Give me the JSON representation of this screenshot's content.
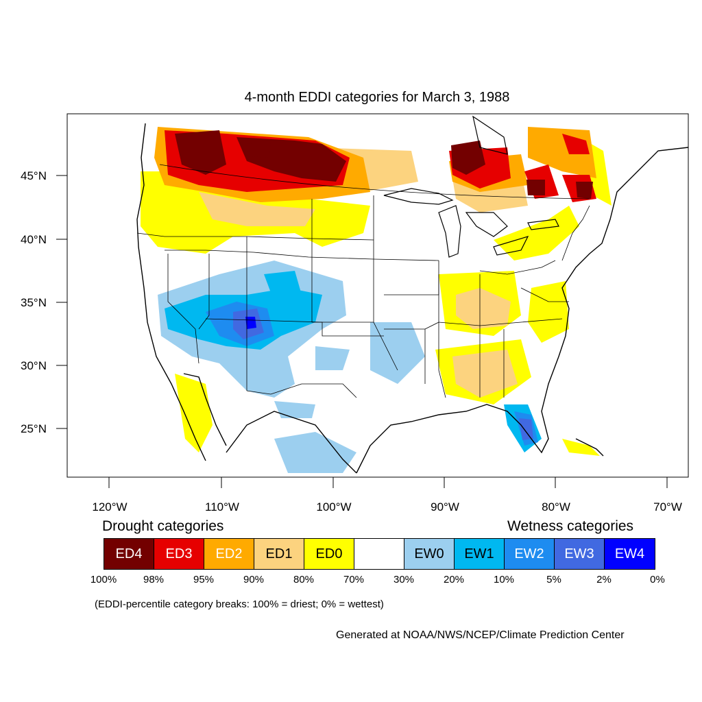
{
  "title": "4-month EDDI categories for March 3, 1988",
  "map": {
    "lat_labels": [
      "45°N",
      "40°N",
      "35°N",
      "30°N",
      "25°N"
    ],
    "lon_labels": [
      "120°W",
      "110°W",
      "100°W",
      "90°W",
      "80°W",
      "70°W"
    ]
  },
  "legend": {
    "drought_heading": "Drought categories",
    "wetness_heading": "Wetness categories",
    "categories": [
      {
        "label": "ED4",
        "color": "#730000",
        "text_color": "#ffffff"
      },
      {
        "label": "ED3",
        "color": "#e60000",
        "text_color": "#ffffff"
      },
      {
        "label": "ED2",
        "color": "#ffaa00",
        "text_color": "#ffffff"
      },
      {
        "label": "ED1",
        "color": "#fcd37f",
        "text_color": "#000000"
      },
      {
        "label": "ED0",
        "color": "#ffff00",
        "text_color": "#000000"
      },
      {
        "label": "",
        "color": "#ffffff",
        "text_color": "#000000"
      },
      {
        "label": "EW0",
        "color": "#9ccfef",
        "text_color": "#000000"
      },
      {
        "label": "EW1",
        "color": "#00b8f0",
        "text_color": "#000000"
      },
      {
        "label": "EW2",
        "color": "#1e8cf0",
        "text_color": "#ffffff"
      },
      {
        "label": "EW3",
        "color": "#4169e1",
        "text_color": "#ffffff"
      },
      {
        "label": "EW4",
        "color": "#0000ff",
        "text_color": "#ffffff"
      }
    ],
    "breaks": [
      "100%",
      "98%",
      "95%",
      "90%",
      "80%",
      "70%",
      "30%",
      "20%",
      "10%",
      "5%",
      "2%",
      "0%"
    ],
    "note": "(EDDI-percentile category breaks: 100% = driest; 0% = wettest)"
  },
  "credit": "Generated at NOAA/NWS/NCEP/Climate Prediction Center"
}
